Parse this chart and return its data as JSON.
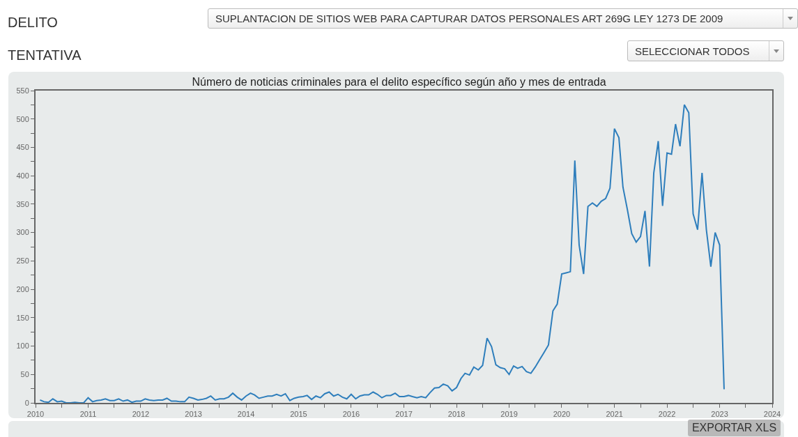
{
  "chart_data": {
    "type": "line",
    "title": "Número de noticias criminales para el delito específico según año y mes de entrada",
    "annotations": [
      "DELITO",
      "TENTATIVA",
      "SUPLANTACION DE SITIOS WEB PARA CAPTURAR DATOS PERSONALES ART 269G LEY 1273 DE 2009",
      "SELECCIONAR TODOS",
      "EXPORTAR XLS"
    ],
    "series": [
      {
        "color": "#2e7ebc",
        "x": [
          "2010-02",
          "2010-03",
          "2010-04",
          "2010-05",
          "2010-06",
          "2010-07",
          "2010-08",
          "2010-09",
          "2010-10",
          "2010-11",
          "2010-12",
          "2011-01",
          "2011-02",
          "2011-03",
          "2011-04",
          "2011-05",
          "2011-06",
          "2011-07",
          "2011-08",
          "2011-09",
          "2011-10",
          "2011-11",
          "2011-12",
          "2012-01",
          "2012-02",
          "2012-03",
          "2012-04",
          "2012-05",
          "2012-06",
          "2012-07",
          "2012-08",
          "2012-09",
          "2012-10",
          "2012-11",
          "2012-12",
          "2013-01",
          "2013-02",
          "2013-03",
          "2013-04",
          "2013-05",
          "2013-06",
          "2013-07",
          "2013-08",
          "2013-09",
          "2013-10",
          "2013-11",
          "2013-12",
          "2014-01",
          "2014-02",
          "2014-03",
          "2014-04",
          "2014-05",
          "2014-06",
          "2014-07",
          "2014-08",
          "2014-09",
          "2014-10",
          "2014-11",
          "2014-12",
          "2015-01",
          "2015-02",
          "2015-03",
          "2015-04",
          "2015-05",
          "2015-06",
          "2015-07",
          "2015-08",
          "2015-09",
          "2015-10",
          "2015-11",
          "2015-12",
          "2016-01",
          "2016-02",
          "2016-03",
          "2016-04",
          "2016-05",
          "2016-06",
          "2016-07",
          "2016-08",
          "2016-09",
          "2016-10",
          "2016-11",
          "2016-12",
          "2017-01",
          "2017-02",
          "2017-03",
          "2017-04",
          "2017-05",
          "2017-06",
          "2017-07",
          "2017-08",
          "2017-09",
          "2017-10",
          "2017-11",
          "2017-12",
          "2018-01",
          "2018-02",
          "2018-03",
          "2018-04",
          "2018-05",
          "2018-06",
          "2018-07",
          "2018-08",
          "2018-09",
          "2018-10",
          "2018-11",
          "2018-12",
          "2019-01",
          "2019-02",
          "2019-03",
          "2019-04",
          "2019-05",
          "2019-06",
          "2019-07",
          "2019-08",
          "2019-09",
          "2019-10",
          "2019-11",
          "2019-12",
          "2020-01",
          "2020-02",
          "2020-03",
          "2020-04",
          "2020-05",
          "2020-06",
          "2020-07",
          "2020-08",
          "2020-09",
          "2020-10",
          "2020-11",
          "2020-12",
          "2021-01",
          "2021-02",
          "2021-03",
          "2021-04",
          "2021-05",
          "2021-06",
          "2021-07",
          "2021-08",
          "2021-09",
          "2021-10",
          "2021-11",
          "2021-12",
          "2022-01",
          "2022-02",
          "2022-03",
          "2022-04",
          "2022-05",
          "2022-06",
          "2022-07",
          "2022-08",
          "2022-09",
          "2022-10",
          "2022-11",
          "2022-12",
          "2023-01",
          "2023-02"
        ],
        "values": [
          5,
          2,
          1,
          7,
          2,
          3,
          0,
          0,
          1,
          0,
          0,
          9,
          2,
          4,
          5,
          7,
          4,
          4,
          7,
          3,
          5,
          1,
          3,
          3,
          7,
          5,
          4,
          5,
          5,
          8,
          3,
          3,
          2,
          2,
          10,
          8,
          5,
          6,
          8,
          12,
          5,
          7,
          7,
          10,
          17,
          10,
          5,
          12,
          17,
          14,
          8,
          10,
          12,
          12,
          15,
          12,
          16,
          4,
          8,
          10,
          11,
          13,
          6,
          12,
          9,
          16,
          19,
          12,
          15,
          10,
          7,
          15,
          7,
          12,
          14,
          14,
          19,
          15,
          9,
          13,
          13,
          17,
          11,
          11,
          13,
          11,
          9,
          11,
          9,
          18,
          26,
          27,
          33,
          30,
          21,
          27,
          43,
          52,
          49,
          63,
          58,
          66,
          114,
          99,
          67,
          62,
          60,
          50,
          65,
          61,
          64,
          55,
          52,
          63,
          76,
          89,
          102,
          162,
          174,
          227,
          229,
          231,
          427,
          278,
          227,
          346,
          352,
          346,
          355,
          360,
          378,
          483,
          467,
          380,
          340,
          298,
          283,
          293,
          338,
          240,
          405,
          461,
          347,
          440,
          438,
          491,
          452,
          525,
          511,
          333,
          305,
          405,
          305,
          240,
          300,
          278,
          24
        ]
      }
    ],
    "xlim": [
      "2010-01-01",
      "2024-01-01"
    ],
    "xticks": [
      {
        "value": "2010-01-01",
        "label": "2010"
      },
      {
        "value": "2010-07-01",
        "label": null
      },
      {
        "value": "2011-01-01",
        "label": "2011"
      },
      {
        "value": "2011-07-01",
        "label": null
      },
      {
        "value": "2012-01-01",
        "label": "2012"
      },
      {
        "value": "2012-07-01",
        "label": null
      },
      {
        "value": "2013-01-01",
        "label": "2013"
      },
      {
        "value": "2013-07-01",
        "label": null
      },
      {
        "value": "2014-01-01",
        "label": "2014"
      },
      {
        "value": "2014-07-01",
        "label": null
      },
      {
        "value": "2015-01-01",
        "label": "2015"
      },
      {
        "value": "2015-07-01",
        "label": null
      },
      {
        "value": "2016-01-01",
        "label": "2016"
      },
      {
        "value": "2016-07-01",
        "label": null
      },
      {
        "value": "2017-01-01",
        "label": "2017"
      },
      {
        "value": "2017-07-01",
        "label": null
      },
      {
        "value": "2018-01-01",
        "label": "2018"
      },
      {
        "value": "2018-07-01",
        "label": null
      },
      {
        "value": "2019-01-01",
        "label": "2019"
      },
      {
        "value": "2019-07-01",
        "label": null
      },
      {
        "value": "2020-01-01",
        "label": "2020"
      },
      {
        "value": "2020-07-01",
        "label": null
      },
      {
        "value": "2021-01-01",
        "label": "2021"
      },
      {
        "value": "2021-07-01",
        "label": null
      },
      {
        "value": "2022-01-01",
        "label": "2022"
      },
      {
        "value": "2022-07-01",
        "label": null
      },
      {
        "value": "2023-01-01",
        "label": "2023"
      },
      {
        "value": "2023-07-01",
        "label": null
      },
      {
        "value": "2024-01-01",
        "label": "2024"
      }
    ],
    "ylim": [
      0,
      550
    ],
    "yticks": [
      0,
      {
        "value": 25,
        "label": null
      },
      50,
      {
        "value": 75,
        "label": null
      },
      100,
      {
        "value": 125,
        "label": null
      },
      150,
      {
        "value": 175,
        "label": null
      },
      200,
      {
        "value": 225,
        "label": null
      },
      250,
      {
        "value": 275,
        "label": null
      },
      300,
      {
        "value": 325,
        "label": null
      },
      350,
      {
        "value": 375,
        "label": null
      },
      400,
      {
        "value": 425,
        "label": null
      },
      450,
      {
        "value": 475,
        "label": null
      },
      500,
      {
        "value": 525,
        "label": null
      },
      550
    ],
    "grid": false,
    "marker": "none",
    "line_style": "solid"
  }
}
